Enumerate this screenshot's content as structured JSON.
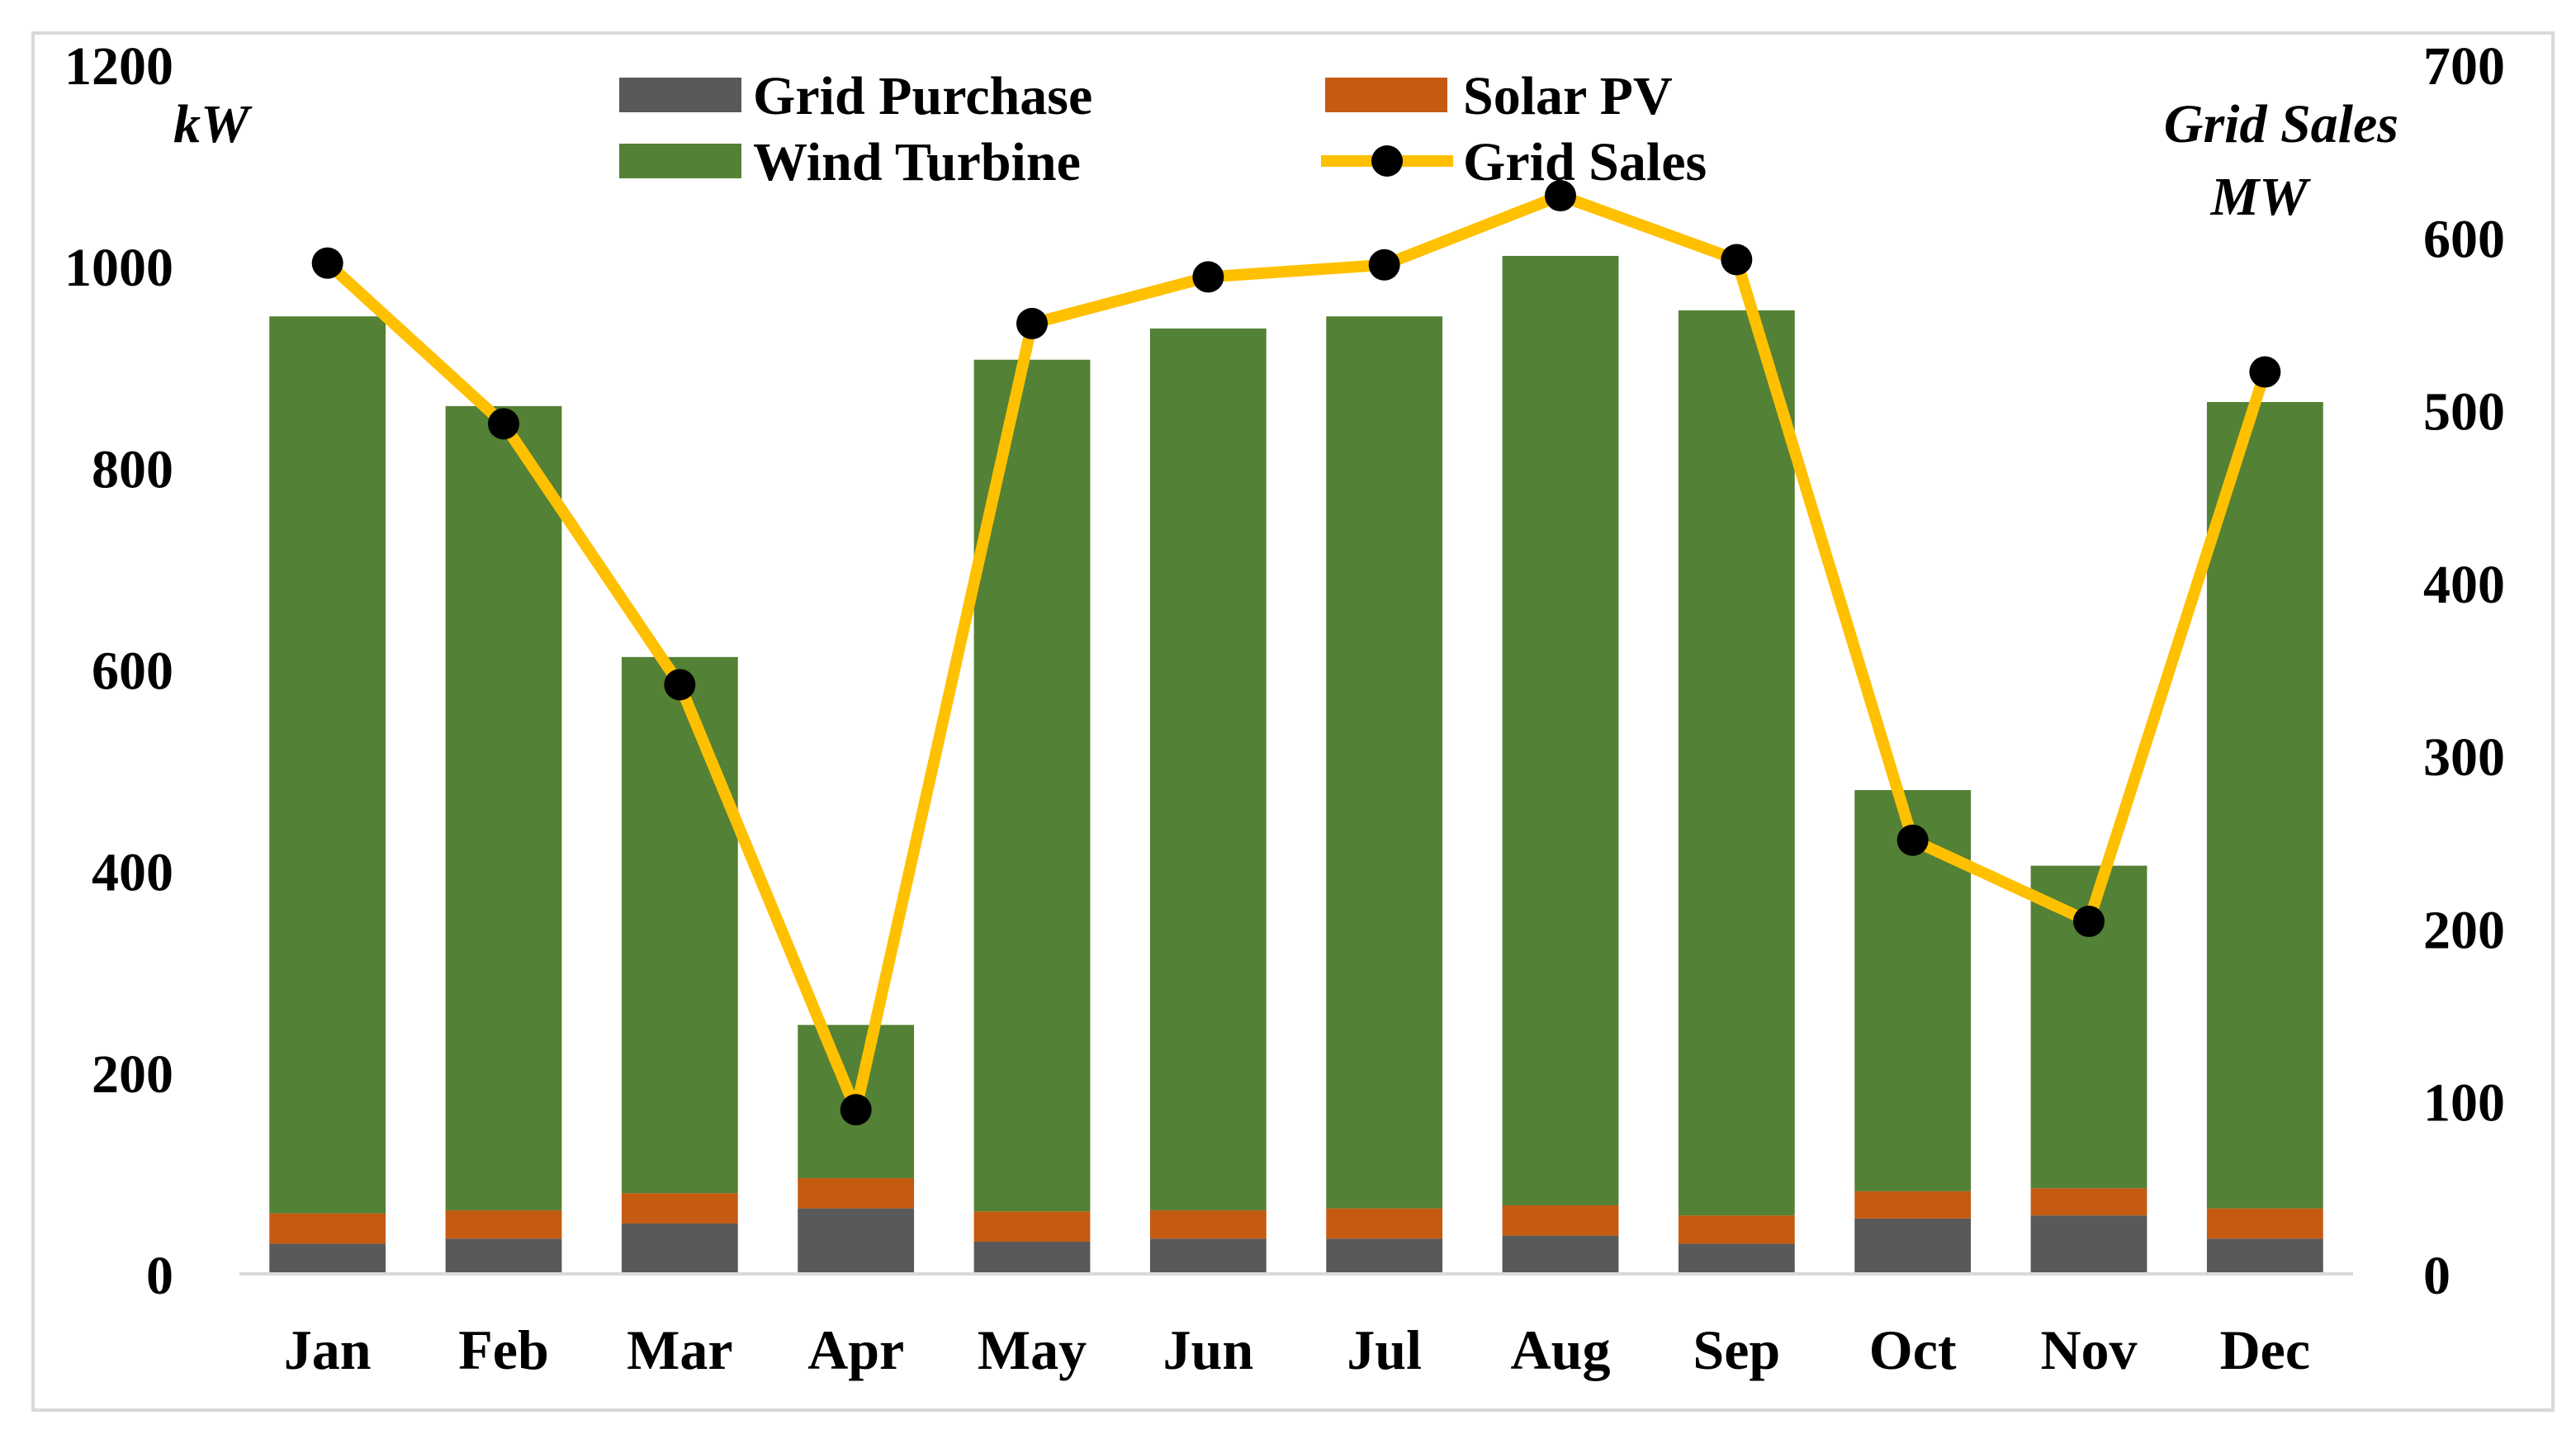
{
  "chart_data": {
    "type": "bar",
    "stacked": true,
    "categories": [
      "Jan",
      "Feb",
      "Mar",
      "Apr",
      "May",
      "Jun",
      "Jul",
      "Aug",
      "Sep",
      "Oct",
      "Nov",
      "Dec"
    ],
    "series": [
      {
        "name": "Grid Purchase",
        "color": "#595959",
        "axis": "left",
        "values": [
          30,
          35,
          50,
          65,
          32,
          35,
          35,
          38,
          30,
          55,
          58,
          35
        ]
      },
      {
        "name": "Solar PV",
        "color": "#c55a11",
        "axis": "left",
        "values": [
          30,
          28,
          30,
          30,
          30,
          28,
          30,
          30,
          28,
          27,
          27,
          30
        ]
      },
      {
        "name": "Wind Turbine",
        "color": "#538135",
        "axis": "left",
        "values": [
          890,
          798,
          532,
          152,
          845,
          875,
          885,
          942,
          898,
          398,
          320,
          800
        ]
      },
      {
        "name": "Grid Sales",
        "type": "line",
        "color": "#ffc000",
        "marker_color": "#000000",
        "axis": "right",
        "values": [
          585,
          492,
          341,
          95,
          550,
          577,
          584,
          624,
          587,
          251,
          204,
          522
        ]
      }
    ],
    "y_left": {
      "label": "kW",
      "min": 0,
      "max": 1200,
      "ticks": [
        "0",
        "200",
        "400",
        "600",
        "800",
        "1000",
        "1200"
      ]
    },
    "y_right": {
      "label_line1": "Grid Sales",
      "label_line2": "MW",
      "min": 0,
      "max": 700,
      "ticks": [
        "0",
        "100",
        "200",
        "300",
        "400",
        "500",
        "600",
        "700"
      ]
    },
    "legend": {
      "position": "top-center"
    },
    "grid": false
  }
}
